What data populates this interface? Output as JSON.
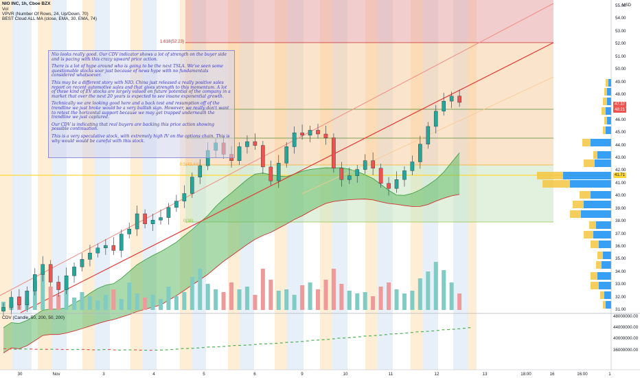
{
  "header": {
    "title": "NIO INC, 1h, Cboe BZX",
    "vol_label": "Vol",
    "vpvr_label": "VPVR (Number Of Rows, 24, Up/Down, 70)",
    "cloud_label": "BEST Cloud ALL MA (close, EMA, 30, EMA, 74)"
  },
  "note": {
    "paragraphs": [
      "Nio looks really good. Our CDV indicator shows a lot of strength on the buyer side and is pacing with this crazy upward price action.",
      "There is a lot of hype around who is going to be the next TSLA. We've seen some questionable stocks soar just because of news hype with no fundamentals considered whatsoever.",
      "This may be a different story with NIO. China just released a really positive sales report on recent automotive sales and that gives strength to this momentum. A lot of these kind of EV stocks are largely valued on future potential of the company in a market that over the next 20 years is expected to see insane exponential growth.",
      "Technically we are looking good here and a back test and resumption off of the trendline we just broke would be a very bullish sign. However, we really don't want to retest the horizontal support because we may get trapped underneath the trendline we just captured.",
      "Our CDV is indicating that real buyers are backing this price action showing possible continuation.",
      "This is a very speculative stock, with extremely high IV on the options chain. This is why would would be careful with this stock."
    ]
  },
  "fib": {
    "upper_label": "1.618(52.23)",
    "lower_label": "0.5(43.44)",
    "small_label": "0(38)"
  },
  "cdv": {
    "label": "CDV (Candle, 50, 200, 50, 200)"
  },
  "price_axis": {
    "currency": "USD",
    "ticks": [
      "55.00",
      "54.00",
      "53.00",
      "52.00",
      "51.00",
      "50.00",
      "49.00",
      "48.00",
      "47.00",
      "46.00",
      "45.00",
      "44.00",
      "43.00",
      "42.00",
      "41.00",
      "40.00",
      "39.00",
      "38.00",
      "37.00",
      "36.00",
      "35.00",
      "34.00",
      "33.00",
      "32.00",
      "31.00"
    ],
    "last_price": "47.37",
    "countdown": "48:21",
    "level_badge": "41.71"
  },
  "cdv_axis": {
    "ticks": [
      "48000000.00",
      "44000000.00",
      "40000000.00",
      "36000000.00"
    ]
  },
  "time_axis": {
    "ticks": [
      "30",
      "Nov",
      "3",
      "4",
      "5",
      "6",
      "9",
      "10",
      "11",
      "12",
      "13",
      "18:00",
      "16",
      "16:00",
      "1"
    ]
  },
  "colors": {
    "up": "#26a69a",
    "down": "#ef5350",
    "trend": "#e53935",
    "cloud": "#66bb6a",
    "vpvr_up": "#2196f3",
    "vpvr_down": "#f5c542"
  },
  "chart_data": {
    "type": "candlestick",
    "title": "NIO INC, 1h, Cboe BZX",
    "ylim": [
      30.5,
      55.3
    ],
    "ohlc_approx_close": [
      31.2,
      32.0,
      31.4,
      32.5,
      33.8,
      34.6,
      33.2,
      32.6,
      33.7,
      34.4,
      35.0,
      35.5,
      35.9,
      36.1,
      35.7,
      37.0,
      37.4,
      38.6,
      37.8,
      38.1,
      38.3,
      39.1,
      39.6,
      40.2,
      41.5,
      42.4,
      43.6,
      44.2,
      43.3,
      42.8,
      43.9,
      44.3,
      44.0,
      42.3,
      41.2,
      42.6,
      43.9,
      45.0,
      44.8,
      45.2,
      44.9,
      44.6,
      42.2,
      41.3,
      41.6,
      42.1,
      42.8,
      42.2,
      41.0,
      40.6,
      41.3,
      42.0,
      42.7,
      44.1,
      45.5,
      46.7,
      47.5,
      47.9,
      47.4
    ],
    "trendline_levels": {
      "fib_1_618": 52.23,
      "fib_0_5": 43.44,
      "fib_0": 38.0,
      "support_upper": 46.9,
      "support_mid": 44.6,
      "support_lower": 41.71
    },
    "cdv_range": [
      36000000,
      48000000
    ]
  }
}
